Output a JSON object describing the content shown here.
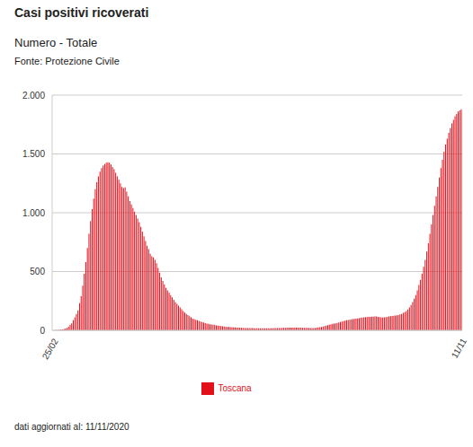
{
  "chart_data": {
    "type": "bar",
    "title": "Casi positivi ricoverati",
    "subtitle": "Numero - Totale",
    "source": "Fonte: Protezione Civile",
    "footnote": "dati aggiornati al: 11/11/2020",
    "categories": [
      "25/02",
      null,
      null,
      null,
      null,
      null,
      null,
      null,
      null,
      null,
      null,
      null,
      null,
      null,
      null,
      null,
      null,
      null,
      null,
      null,
      null,
      null,
      null,
      null,
      null,
      null,
      null,
      null,
      null,
      null,
      null,
      null,
      null,
      null,
      null,
      null,
      null,
      null,
      null,
      null,
      null,
      null,
      null,
      null,
      null,
      null,
      null,
      null,
      null,
      null,
      null,
      null,
      null,
      null,
      null,
      null,
      null,
      null,
      null,
      null,
      null,
      null,
      null,
      null,
      null,
      null,
      null,
      null,
      null,
      null,
      null,
      null,
      null,
      null,
      null,
      null,
      null,
      null,
      null,
      null,
      null,
      null,
      null,
      null,
      null,
      null,
      null,
      null,
      null,
      null,
      null,
      null,
      null,
      null,
      null,
      null,
      null,
      null,
      null,
      null,
      null,
      null,
      null,
      null,
      null,
      null,
      null,
      null,
      null,
      null,
      null,
      null,
      null,
      null,
      null,
      null,
      null,
      null,
      null,
      null,
      null,
      null,
      null,
      null,
      null,
      null,
      null,
      null,
      null,
      null,
      null,
      null,
      null,
      null,
      null,
      null,
      null,
      null,
      null,
      null,
      null,
      null,
      null,
      null,
      null,
      null,
      null,
      null,
      null,
      null,
      null,
      null,
      null,
      null,
      null,
      null,
      null,
      null,
      null,
      null,
      null,
      null,
      null,
      null,
      null,
      null,
      null,
      null,
      null,
      null,
      null,
      null,
      null,
      null,
      null,
      null,
      null,
      null,
      null,
      null,
      null,
      null,
      null,
      null,
      null,
      null,
      null,
      null,
      null,
      null,
      null,
      null,
      null,
      null,
      null,
      null,
      null,
      null,
      null,
      null,
      null,
      null,
      null,
      null,
      null,
      null,
      null,
      null,
      null,
      null,
      null,
      null,
      null,
      null,
      null,
      null,
      null,
      null,
      null,
      null,
      null,
      null,
      null,
      null,
      null,
      null,
      null,
      null,
      null,
      null,
      null,
      null,
      null,
      null,
      null,
      null,
      null,
      null,
      null,
      null,
      null,
      null,
      null,
      null,
      null,
      null,
      null,
      null,
      null,
      null,
      null,
      null,
      null,
      null,
      null,
      null,
      null,
      null,
      null,
      null,
      "11/11"
    ],
    "series": [
      {
        "name": "Toscana",
        "color": "#e3101b",
        "values": [
          0,
          0,
          1,
          2,
          3,
          5,
          8,
          12,
          15,
          20,
          30,
          45,
          60,
          85,
          110,
          140,
          170,
          230,
          290,
          380,
          480,
          580,
          700,
          820,
          930,
          1030,
          1120,
          1200,
          1260,
          1310,
          1350,
          1380,
          1400,
          1415,
          1425,
          1430,
          1425,
          1410,
          1390,
          1370,
          1340,
          1310,
          1280,
          1250,
          1220,
          1210,
          1215,
          1180,
          1140,
          1100,
          1070,
          1040,
          1010,
          980,
          950,
          920,
          880,
          840,
          800,
          760,
          720,
          690,
          650,
          630,
          620,
          600,
          570,
          530,
          490,
          450,
          420,
          390,
          360,
          340,
          320,
          300,
          280,
          260,
          240,
          225,
          210,
          195,
          180,
          165,
          150,
          140,
          130,
          120,
          110,
          100,
          95,
          90,
          85,
          80,
          75,
          70,
          66,
          62,
          58,
          55,
          52,
          50,
          48,
          45,
          42,
          40,
          38,
          36,
          34,
          32,
          30,
          29,
          28,
          27,
          26,
          25,
          24,
          23,
          22,
          22,
          21,
          21,
          20,
          20,
          20,
          19,
          19,
          19,
          18,
          18,
          18,
          18,
          18,
          18,
          18,
          18,
          18,
          18,
          18,
          18,
          18,
          19,
          19,
          20,
          20,
          20,
          21,
          21,
          21,
          22,
          22,
          22,
          22,
          22,
          22,
          22,
          22,
          22,
          22,
          21,
          21,
          21,
          21,
          20,
          20,
          20,
          20,
          20,
          22,
          24,
          26,
          28,
          32,
          36,
          40,
          44,
          48,
          52,
          55,
          58,
          60,
          63,
          66,
          70,
          74,
          78,
          82,
          85,
          88,
          90,
          93,
          95,
          98,
          100,
          102,
          104,
          106,
          108,
          110,
          112,
          113,
          114,
          115,
          116,
          117,
          118,
          118,
          115,
          112,
          110,
          108,
          110,
          112,
          115,
          118,
          120,
          122,
          124,
          126,
          128,
          130,
          135,
          140,
          148,
          155,
          165,
          178,
          195,
          215,
          240,
          270,
          300,
          340,
          385,
          430,
          480,
          540,
          600,
          670,
          740,
          820,
          900,
          980,
          1060,
          1140,
          1220,
          1300,
          1380,
          1450,
          1520,
          1580,
          1630,
          1680,
          1720,
          1760,
          1790,
          1820,
          1840,
          1860,
          1870,
          1880
        ]
      }
    ],
    "ylim": [
      0,
      2000
    ],
    "yticks": [
      0,
      500,
      {
        "value": 1000,
        "label": "1.000"
      },
      {
        "value": 1500,
        "label": "1.500"
      },
      {
        "value": 2000,
        "label": "2.000"
      }
    ],
    "grid": true,
    "legend": "bottom"
  }
}
